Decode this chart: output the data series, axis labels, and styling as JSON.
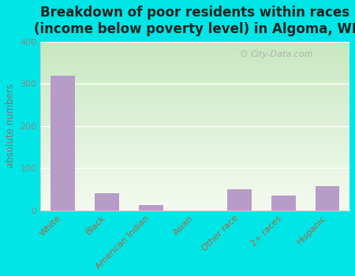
{
  "title": "Breakdown of poor residents within races\n(income below poverty level) in Algoma, WI",
  "categories": [
    "White",
    "Black",
    "American Indian",
    "Asian",
    "Other race",
    "2+ races",
    "Hispanic"
  ],
  "values": [
    320,
    40,
    13,
    0,
    50,
    35,
    57
  ],
  "bar_color": "#b89cc8",
  "ylabel": "absolute numbers",
  "ylim": [
    0,
    400
  ],
  "yticks": [
    0,
    100,
    200,
    300,
    400
  ],
  "background_color": "#00e5e5",
  "plot_bg_top": "#c8e8c0",
  "plot_bg_bottom": "#f4faf0",
  "title_fontsize": 12,
  "label_fontsize": 8.5,
  "tick_fontsize": 8,
  "ylabel_color": "#777777",
  "ytick_color": "#888888",
  "xtick_color": "#aa6644",
  "watermark": "City-Data.com",
  "grid_color": "#ffffff",
  "spine_color": "#cccccc"
}
